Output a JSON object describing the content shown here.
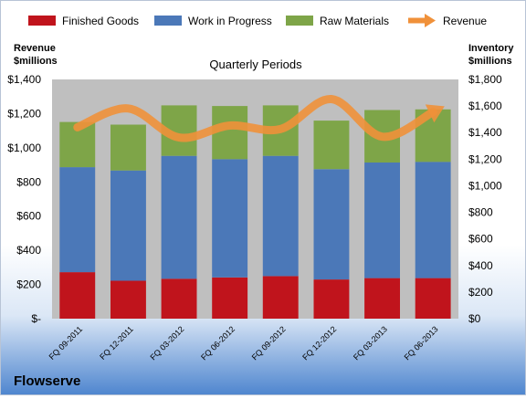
{
  "chart_data": {
    "type": "bar",
    "subtitle": "Quarterly Periods",
    "footer_label": "Flowserve",
    "categories": [
      "FQ 09-2011",
      "FQ 12-2011",
      "FQ 03-2012",
      "FQ 06-2012",
      "FQ 09-2012",
      "FQ 12-2012",
      "FQ 03-2013",
      "FQ 06-2013"
    ],
    "stacked": true,
    "series": [
      {
        "name": "Finished Goods",
        "axis": "right",
        "color": "#c0141c",
        "values": [
          350,
          285,
          300,
          310,
          320,
          295,
          305,
          305
        ]
      },
      {
        "name": "Work in Progress",
        "axis": "right",
        "color": "#4b78b8",
        "values": [
          790,
          830,
          925,
          890,
          905,
          830,
          870,
          875
        ]
      },
      {
        "name": "Raw Materials",
        "axis": "right",
        "color": "#7ea548",
        "values": [
          340,
          345,
          380,
          400,
          380,
          365,
          395,
          395
        ]
      }
    ],
    "line_series": {
      "name": "Revenue",
      "axis": "left",
      "color": "#f0913a",
      "values": [
        1120,
        1230,
        1060,
        1130,
        1110,
        1285,
        1065,
        1210
      ]
    },
    "left_axis": {
      "label_line1": "Revenue",
      "label_line2": "$millions",
      "min": 0,
      "max": 1400,
      "ticks": [
        0,
        200,
        400,
        600,
        800,
        1000,
        1200,
        1400
      ],
      "tick_labels": [
        "$-",
        "$200",
        "$400",
        "$600",
        "$800",
        "$1,000",
        "$1,200",
        "$1,400"
      ]
    },
    "right_axis": {
      "label_line1": "Inventory",
      "label_line2": "$millions",
      "min": 0,
      "max": 1800,
      "ticks": [
        0,
        200,
        400,
        600,
        800,
        1000,
        1200,
        1400,
        1600,
        1800
      ],
      "tick_labels": [
        "$0",
        "$200",
        "$400",
        "$600",
        "$800",
        "$1,000",
        "$1,200",
        "$1,400",
        "$1,600",
        "$1,800"
      ]
    },
    "legend_position": "top",
    "grid": false
  }
}
